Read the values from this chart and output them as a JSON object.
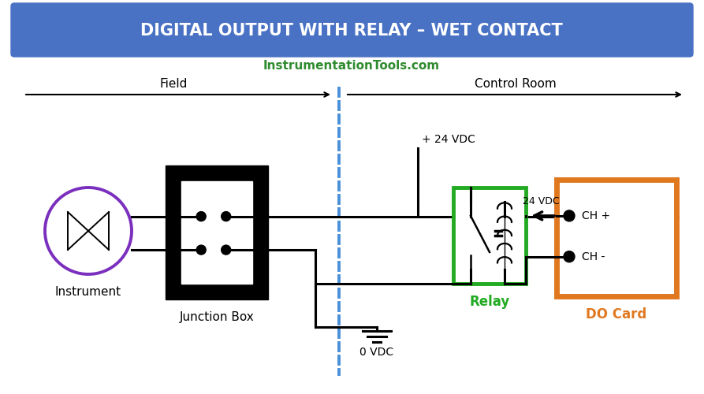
{
  "title": "DIGITAL OUTPUT WITH RELAY – WET CONTACT",
  "title_bg": "#4a72c4",
  "title_color": "#ffffff",
  "website": "InstrumentationTools.com",
  "website_color": "#2e8b2e",
  "field_label": "Field",
  "control_room_label": "Control Room",
  "instrument_label": "Instrument",
  "junction_box_label": "Junction Box",
  "relay_label": "Relay",
  "do_card_label": "DO Card",
  "plus_24vdc_label": "+ 24 VDC",
  "zero_vdc_label": "0 VDC",
  "vdc_24_label": "24 VDC",
  "ch_plus_label": "CH +",
  "ch_minus_label": "CH -",
  "instrument_circle_color": "#7b2fbe",
  "relay_box_color": "#22aa22",
  "do_card_color": "#e07820",
  "line_color": "#000000",
  "dashed_line_color": "#4a90d9",
  "bg_color": "#ffffff"
}
